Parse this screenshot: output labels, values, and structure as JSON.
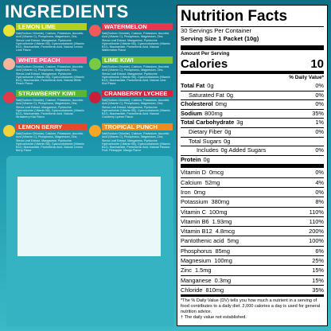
{
  "title": "INGREDIENTS",
  "flavors": [
    {
      "name": "LEMON LIME",
      "ingredients": "Salt(Sodium Chloride), Calcium, Potassium, Ascorbic Acid (Vitamin C), Phosphorus, Magnesium, Zinc, Stevia Leaf Extract, Manganese, Pyridoxine Hydrochloride (Vitamin B6), Cyanocobalamin (Vitamin B12), Niacinamide, Pantothenic Acid, Natural Lemon Lime Flavor"
    },
    {
      "name": "WATERMELON",
      "ingredients": "Salt(Sodium Chloride), Calcium, Potassium, Ascorbic Acid (Vitamin C), Phosphorus, Magnesium, Zinc, Stevia Leaf Extract, Manganese, Pyridoxine Hydrochloride (Vitamin B6), Cyanocobalamin (Vitamin B12), Niacinamide, Pantothenic Acid, Natural Watermelon Flavor"
    },
    {
      "name": "WHITE PEACH",
      "ingredients": "Salt(Sodium Chloride), Calcium, Potassium, Ascorbic Acid (Vitamin C), Phosphorus, Magnesium, Zinc, Stevia Leaf Extract, Manganese, Pyridoxine Hydrochloride (Vitamin B6), Cyanocobalamin (Vitamin B12), Niacinamide, Pantothenic Acid, Natural White Peach Flavor"
    },
    {
      "name": "LIME KIWI",
      "ingredients": "Salt(Sodium Chloride), Calcium, Potassium, Ascorbic Acid (Vitamin C), Phosphorus, Magnesium, Zinc, Stevia Leaf Extract, Manganese, Pyridoxine Hydrochloride (Vitamin B6), Cyanocobalamin (Vitamin B12), Niacinamide, Pantothenic Acid, Natural Lime Kiwi Flavor"
    },
    {
      "name": "STRAWBERRY KIWI",
      "ingredients": "Salt(Sodium Chloride), Calcium, Potassium, Ascorbic Acid (Vitamin C), Phosphorus, Magnesium, Zinc, Stevia Leaf Extract, Manganese, Pyridoxine Hydrochloride (Vitamin B6), Cyanocobalamin (Vitamin B12), Niacinamide, Pantothenic Acid, Natural Strawberry Kiwi Flavor"
    },
    {
      "name": "CRANBERRY LYCHEE",
      "ingredients": "Salt(Sodium Chloride), Calcium, Potassium, Ascorbic Acid (Vitamin C), Phosphorus, Magnesium, Zinc, Stevia Leaf Extract, Manganese, Pyridoxine Hydrochloride (Vitamin B6), Cyanocobalamin (Vitamin B12), Niacinamide, Pantothenic Acid, Natural Cranberry Lychee Flavor"
    },
    {
      "name": "LEMON BERRY",
      "ingredients": "Salt(Sodium Chloride), Calcium, Potassium, Ascorbic Acid (Vitamin C), Phosphorus, Magnesium, Zinc, Stevia Leaf Extract, Manganese, Pyridoxine Hydrochloride (Vitamin B6), Cyanocobalamin (Vitamin B12), Niacinamide, Pantothenic Acid, Natural Lemon Berry Flavor"
    },
    {
      "name": "TROPICAL PUNCH",
      "ingredients": "Salt(Sodium Chloride), Calcium, Potassium, Ascorbic Acid (Vitamin C), Phosphorus, Magnesium, Zinc, Stevia Leaf Extract, Manganese, Pyridoxine Hydrochloride (Vitamin B6), Cyanocobalamin (Vitamin B12), Niacinamide, Pantothenic Acid, Natural Passion Fruit, Pineapple, Mango Flavor"
    }
  ],
  "nutrition": {
    "title": "Nutrition Facts",
    "servings": "30 Servings Per Container",
    "serving_size": "Serving Size 1 Packet (10g)",
    "amount_label": "Amount Per Serving",
    "calories_label": "Calories",
    "calories": "10",
    "dv_header": "% Daily Value*",
    "rows": [
      {
        "name": "Total Fat",
        "amount": "0g",
        "dv": "0%"
      },
      {
        "name": "Saturated Fat",
        "amount": "0g",
        "dv": "0%"
      },
      {
        "name": "Cholesterol",
        "amount": "0mg",
        "dv": "0%"
      },
      {
        "name": "Sodium",
        "amount": "800mg",
        "dv": "35%"
      },
      {
        "name": "Total Carbohydrate",
        "amount": "3g",
        "dv": "1%"
      },
      {
        "name": "Dietary Fiber",
        "amount": "0g",
        "dv": "0%"
      },
      {
        "name": "Total Sugars",
        "amount": "0g"
      },
      {
        "name": "Includes",
        "amount": "0g Added Sugars",
        "dv": "0%"
      },
      {
        "name": "Protein",
        "amount": "0g"
      }
    ],
    "vitamins": [
      {
        "name": "Vitamin D",
        "amount": "0mcg",
        "dv": "0%"
      },
      {
        "name": "Calcium",
        "amount": "52mg",
        "dv": "4%"
      },
      {
        "name": "Iron",
        "amount": "0mg",
        "dv": "0%"
      },
      {
        "name": "Potassium",
        "amount": "380mg",
        "dv": "8%"
      },
      {
        "name": "Vitamin C",
        "amount": "100mg",
        "dv": "110%"
      },
      {
        "name": "Vitamin B6",
        "amount": "1.93mg",
        "dv": "110%"
      },
      {
        "name": "Vitamin B12",
        "amount": "4.8mcg",
        "dv": "200%"
      },
      {
        "name": "Pantothenic acid",
        "amount": "5mg",
        "dv": "100%"
      },
      {
        "name": "Phosphorus",
        "amount": "85mg",
        "dv": "6%"
      },
      {
        "name": "Magnesium",
        "amount": "100mg",
        "dv": "25%"
      },
      {
        "name": "Zinc",
        "amount": "1.5mg",
        "dv": "15%"
      },
      {
        "name": "Manganese",
        "amount": "0.3mg",
        "dv": "15%"
      },
      {
        "name": "Chloride",
        "amount": "810mg",
        "dv": "35%"
      }
    ],
    "footnote": "*The % Daily Value (DV) tells you how much a nutrient in a serving of food contributes to a daily diet. 2,000 calories a day is used for general nutrition advice.",
    "footnote2": "† The daily value not established."
  }
}
